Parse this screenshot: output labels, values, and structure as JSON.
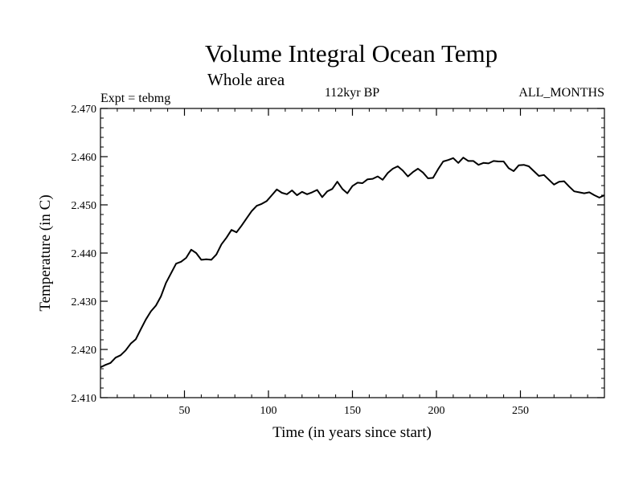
{
  "chart_data": {
    "type": "line",
    "title": "Volume Integral Ocean Temp",
    "subtitle": "Whole area",
    "header_left": "Expt = tebmg",
    "header_center": "112kyr BP",
    "header_right": "ALL_MONTHS",
    "xlabel": "Time (in years since start)",
    "ylabel": "Temperature (in C)",
    "xlim": [
      0,
      300
    ],
    "ylim": [
      2.41,
      2.47
    ],
    "x_ticks": [
      50,
      100,
      150,
      200,
      250
    ],
    "y_ticks": [
      "2.410",
      "2.420",
      "2.430",
      "2.440",
      "2.450",
      "2.460",
      "2.470"
    ],
    "y_tick_values": [
      2.41,
      2.42,
      2.43,
      2.44,
      2.45,
      2.46,
      2.47
    ],
    "series": [
      {
        "name": "Volume integral ocean temperature",
        "color": "#000000",
        "x": [
          0,
          3,
          6,
          9,
          12,
          15,
          18,
          21,
          24,
          27,
          30,
          33,
          36,
          39,
          42,
          45,
          48,
          51,
          54,
          57,
          60,
          63,
          66,
          69,
          72,
          75,
          78,
          81,
          84,
          87,
          90,
          93,
          96,
          99,
          102,
          105,
          108,
          111,
          114,
          117,
          120,
          123,
          126,
          129,
          132,
          135,
          138,
          141,
          144,
          147,
          150,
          153,
          156,
          159,
          162,
          165,
          168,
          171,
          174,
          177,
          180,
          183,
          186,
          189,
          192,
          195,
          198,
          201,
          204,
          207,
          210,
          213,
          216,
          219,
          222,
          225,
          228,
          231,
          234,
          237,
          240,
          243,
          246,
          249,
          252,
          255,
          258,
          261,
          264,
          267,
          270,
          273,
          276,
          279,
          282,
          285,
          288,
          291,
          294,
          297,
          300
        ],
        "values": [
          2.4163,
          2.4168,
          2.4172,
          2.4183,
          2.4188,
          2.4198,
          2.4212,
          2.4221,
          2.4242,
          2.4262,
          2.4279,
          2.4291,
          2.431,
          2.4338,
          2.4358,
          2.4378,
          2.4382,
          2.439,
          2.4407,
          2.44,
          2.4386,
          2.4387,
          2.4386,
          2.4397,
          2.4418,
          2.4432,
          2.4448,
          2.4443,
          2.4457,
          2.4472,
          2.4487,
          2.4498,
          2.4502,
          2.4508,
          2.452,
          2.4532,
          2.4525,
          2.4522,
          2.453,
          2.452,
          2.4527,
          2.4522,
          2.4526,
          2.4531,
          2.4516,
          2.4528,
          2.4533,
          2.4548,
          2.4533,
          2.4524,
          2.4539,
          2.4546,
          2.4545,
          2.4553,
          2.4554,
          2.4559,
          2.4552,
          2.4566,
          2.4575,
          2.458,
          2.4571,
          2.4559,
          2.4568,
          2.4575,
          2.4567,
          2.4555,
          2.4556,
          2.4574,
          2.459,
          2.4593,
          2.4597,
          2.4587,
          2.4598,
          2.4591,
          2.4591,
          2.4583,
          2.4587,
          2.4586,
          2.4591,
          2.459,
          2.459,
          2.4576,
          2.457,
          2.4582,
          2.4583,
          2.458,
          2.457,
          2.456,
          2.4562,
          2.4552,
          2.4542,
          2.4548,
          2.4549,
          2.4538,
          2.4528,
          2.4526,
          2.4524,
          2.4526,
          2.452,
          2.4515,
          2.452
        ]
      }
    ]
  }
}
